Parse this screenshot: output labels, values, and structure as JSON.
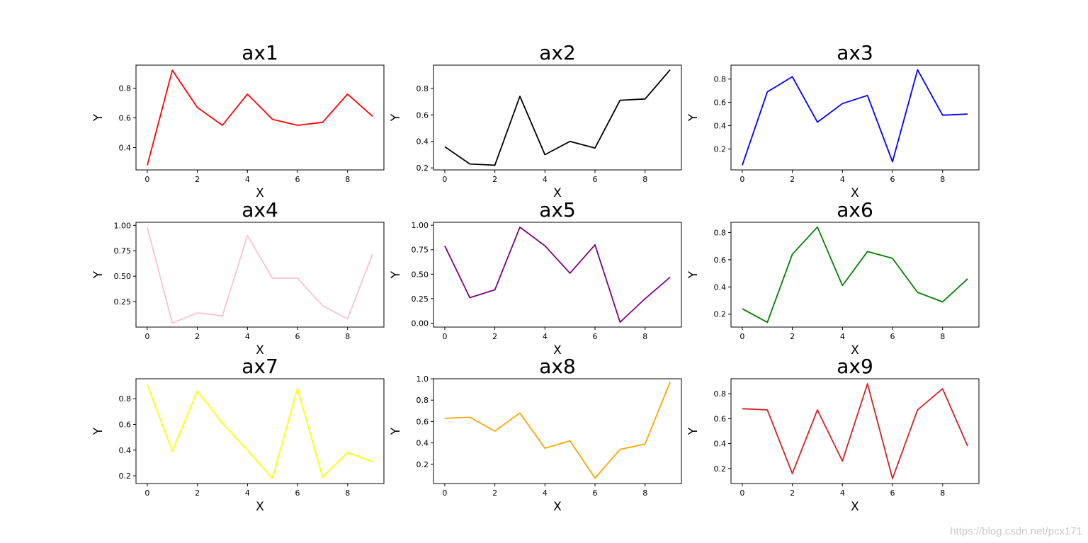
{
  "watermark": "https://blog.csdn.net/pcx171",
  "chart_data": [
    {
      "type": "line",
      "title": "ax1",
      "xlabel": "X",
      "ylabel": "Y",
      "color": "#ff0000",
      "x": [
        0,
        1,
        2,
        3,
        4,
        5,
        6,
        7,
        8,
        9
      ],
      "values": [
        0.28,
        0.92,
        0.67,
        0.55,
        0.76,
        0.59,
        0.55,
        0.57,
        0.76,
        0.61
      ],
      "xlim": [
        -0.45,
        9.45
      ],
      "ylim": [
        0.25,
        0.955
      ],
      "xticks": [
        0,
        2,
        4,
        6,
        8
      ],
      "yticks": [
        0.4,
        0.6,
        0.8
      ],
      "ytick_labels": [
        "0.4",
        "0.6",
        "0.8"
      ]
    },
    {
      "type": "line",
      "title": "ax2",
      "xlabel": "X",
      "ylabel": "Y",
      "color": "#000000",
      "x": [
        0,
        1,
        2,
        3,
        4,
        5,
        6,
        7,
        8,
        9
      ],
      "values": [
        0.36,
        0.23,
        0.22,
        0.74,
        0.3,
        0.4,
        0.35,
        0.71,
        0.72,
        0.94
      ],
      "xlim": [
        -0.45,
        9.45
      ],
      "ylim": [
        0.185,
        0.975
      ],
      "xticks": [
        0,
        2,
        4,
        6,
        8
      ],
      "yticks": [
        0.2,
        0.4,
        0.6,
        0.8
      ],
      "ytick_labels": [
        "0.2",
        "0.4",
        "0.6",
        "0.8"
      ]
    },
    {
      "type": "line",
      "title": "ax3",
      "xlabel": "X",
      "ylabel": "Y",
      "color": "#0000ff",
      "x": [
        0,
        1,
        2,
        3,
        4,
        5,
        6,
        7,
        8,
        9
      ],
      "values": [
        0.06,
        0.69,
        0.82,
        0.43,
        0.59,
        0.66,
        0.09,
        0.88,
        0.49,
        0.5
      ],
      "xlim": [
        -0.45,
        9.45
      ],
      "ylim": [
        0.02,
        0.92
      ],
      "xticks": [
        0,
        2,
        4,
        6,
        8
      ],
      "yticks": [
        0.2,
        0.4,
        0.6,
        0.8
      ],
      "ytick_labels": [
        "0.2",
        "0.4",
        "0.6",
        "0.8"
      ]
    },
    {
      "type": "line",
      "title": "ax4",
      "xlabel": "X",
      "ylabel": "Y",
      "color": "#ffc0cb",
      "x": [
        0,
        1,
        2,
        3,
        4,
        5,
        6,
        7,
        8,
        9
      ],
      "values": [
        0.98,
        0.04,
        0.14,
        0.11,
        0.9,
        0.48,
        0.48,
        0.21,
        0.08,
        0.72
      ],
      "xlim": [
        -0.45,
        9.45
      ],
      "ylim": [
        0.0,
        1.03
      ],
      "xticks": [
        0,
        2,
        4,
        6,
        8
      ],
      "yticks": [
        0.25,
        0.5,
        0.75,
        1.0
      ],
      "ytick_labels": [
        "0.25",
        "0.50",
        "0.75",
        "1.00"
      ]
    },
    {
      "type": "line",
      "title": "ax5",
      "xlabel": "X",
      "ylabel": "Y",
      "color": "#800080",
      "x": [
        0,
        1,
        2,
        3,
        4,
        5,
        6,
        7,
        8,
        9
      ],
      "values": [
        0.79,
        0.26,
        0.34,
        0.98,
        0.79,
        0.51,
        0.8,
        0.01,
        0.25,
        0.47
      ],
      "xlim": [
        -0.45,
        9.45
      ],
      "ylim": [
        -0.04,
        1.03
      ],
      "xticks": [
        0,
        2,
        4,
        6,
        8
      ],
      "yticks": [
        0.0,
        0.25,
        0.5,
        0.75,
        1.0
      ],
      "ytick_labels": [
        "0.00",
        "0.25",
        "0.50",
        "0.75",
        "1.00"
      ]
    },
    {
      "type": "line",
      "title": "ax6",
      "xlabel": "X",
      "ylabel": "Y",
      "color": "#008000",
      "x": [
        0,
        1,
        2,
        3,
        4,
        5,
        6,
        7,
        8,
        9
      ],
      "values": [
        0.24,
        0.14,
        0.64,
        0.84,
        0.41,
        0.66,
        0.61,
        0.36,
        0.29,
        0.46
      ],
      "xlim": [
        -0.45,
        9.45
      ],
      "ylim": [
        0.105,
        0.875
      ],
      "xticks": [
        0,
        2,
        4,
        6,
        8
      ],
      "yticks": [
        0.2,
        0.4,
        0.6,
        0.8
      ],
      "ytick_labels": [
        "0.2",
        "0.4",
        "0.6",
        "0.8"
      ]
    },
    {
      "type": "line",
      "title": "ax7",
      "xlabel": "X",
      "ylabel": "Y",
      "color": "#ffff00",
      "x": [
        0,
        1,
        2,
        3,
        4,
        5,
        6,
        7,
        8,
        9
      ],
      "values": [
        0.91,
        0.39,
        0.86,
        0.61,
        0.4,
        0.18,
        0.88,
        0.19,
        0.38,
        0.31
      ],
      "xlim": [
        -0.45,
        9.45
      ],
      "ylim": [
        0.14,
        0.955
      ],
      "xticks": [
        0,
        2,
        4,
        6,
        8
      ],
      "yticks": [
        0.2,
        0.4,
        0.6,
        0.8
      ],
      "ytick_labels": [
        "0.2",
        "0.4",
        "0.6",
        "0.8"
      ]
    },
    {
      "type": "line",
      "title": "ax8",
      "xlabel": "X",
      "ylabel": "Y",
      "color": "#ffa500",
      "x": [
        0,
        1,
        2,
        3,
        4,
        5,
        6,
        7,
        8,
        9
      ],
      "values": [
        0.63,
        0.64,
        0.51,
        0.68,
        0.35,
        0.42,
        0.07,
        0.34,
        0.39,
        0.97
      ],
      "xlim": [
        -0.45,
        9.45
      ],
      "ylim": [
        0.02,
        1.0
      ],
      "xticks": [
        0,
        2,
        4,
        6,
        8
      ],
      "yticks": [
        0.2,
        0.4,
        0.6,
        0.8,
        1.0
      ],
      "ytick_labels": [
        "0.2",
        "0.4",
        "0.6",
        "0.8",
        "1.0"
      ]
    },
    {
      "type": "line",
      "title": "ax9",
      "xlabel": "X",
      "ylabel": "Y",
      "color": "#d62020",
      "x": [
        0,
        1,
        2,
        3,
        4,
        5,
        6,
        7,
        8,
        9
      ],
      "values": [
        0.68,
        0.67,
        0.16,
        0.67,
        0.26,
        0.88,
        0.12,
        0.67,
        0.84,
        0.38
      ],
      "xlim": [
        -0.45,
        9.45
      ],
      "ylim": [
        0.08,
        0.92
      ],
      "xticks": [
        0,
        2,
        4,
        6,
        8
      ],
      "yticks": [
        0.2,
        0.4,
        0.6,
        0.8
      ],
      "ytick_labels": [
        "0.2",
        "0.4",
        "0.6",
        "0.8"
      ]
    }
  ]
}
